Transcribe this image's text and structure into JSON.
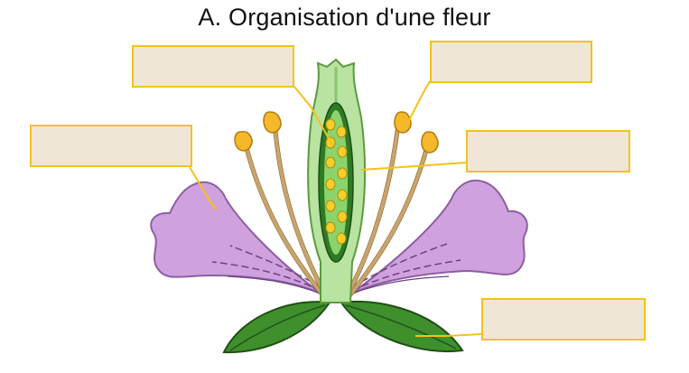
{
  "title": "A. Organisation d'une fleur",
  "labels": {
    "ovary": "",
    "anther": "",
    "petal": "",
    "pistil": "",
    "sepal": ""
  },
  "colors": {
    "label_fill": "#f0e6d8",
    "label_border": "#f3c21a",
    "petal": "#cfa1de",
    "petal_outline": "#8b5fa2",
    "pistil": "#b8e3a0",
    "ovary_inner": "#2f7a24",
    "ovule": "#f4cf2b",
    "anther": "#f5b82a",
    "filament": "#c9a46a",
    "sepal": "#3f8f2c"
  }
}
